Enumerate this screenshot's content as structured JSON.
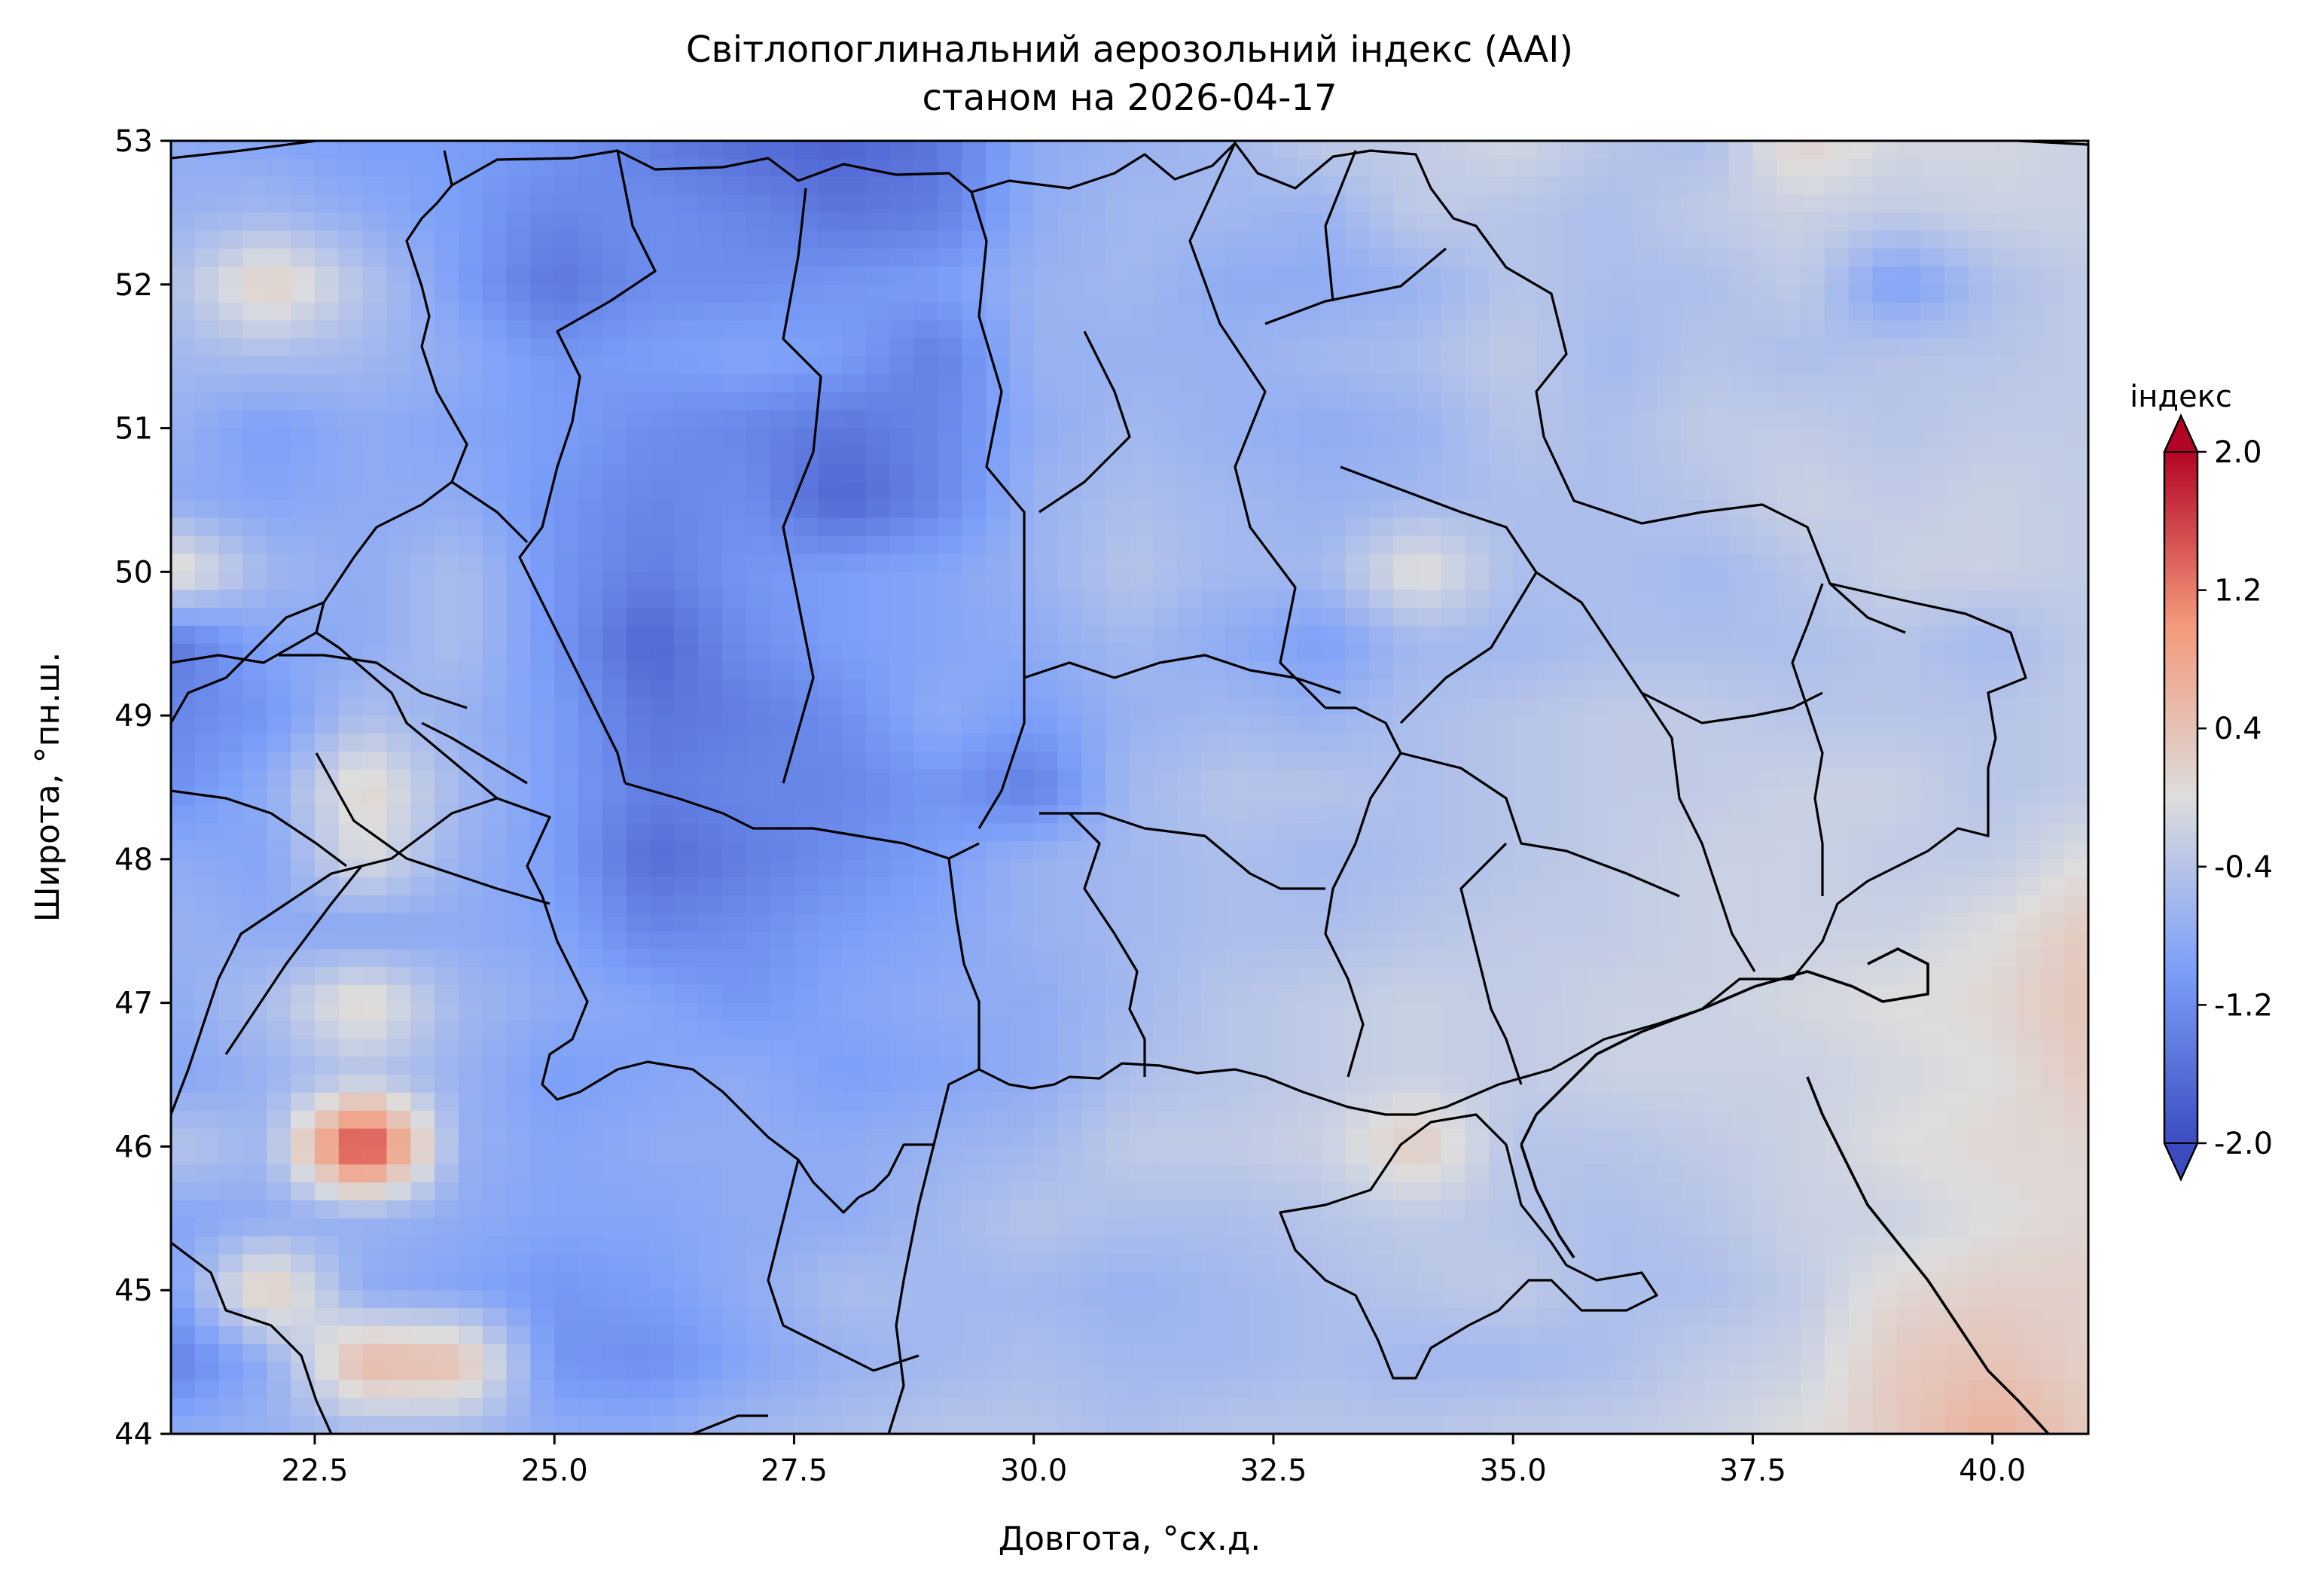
{
  "title": {
    "line1": "Світлопоглинальний аерозольний індекс (AAI)",
    "line2": "станом на 2026-04-17"
  },
  "axes": {
    "xlabel": "Довгота, °сх.д.",
    "ylabel": "Широта, °пн.ш.",
    "xlim": [
      21,
      41
    ],
    "ylim": [
      44,
      53
    ],
    "xticks": [
      22.5,
      25.0,
      27.5,
      30.0,
      32.5,
      35.0,
      37.5,
      40.0
    ],
    "yticks": [
      44,
      45,
      46,
      47,
      48,
      49,
      50,
      51,
      52,
      53
    ],
    "xtick_labels": [
      "22.5",
      "25.0",
      "27.5",
      "30.0",
      "32.5",
      "35.0",
      "37.5",
      "40.0"
    ],
    "ytick_labels": [
      "44",
      "45",
      "46",
      "47",
      "48",
      "49",
      "50",
      "51",
      "52",
      "53"
    ]
  },
  "colorbar": {
    "label": "індекс",
    "range": [
      -2.0,
      2.0
    ],
    "ticks": [
      -2.0,
      -1.2,
      -0.4,
      0.4,
      1.2,
      2.0
    ],
    "tick_labels": [
      "-2.0",
      "-1.2",
      "-0.4",
      "0.4",
      "1.2",
      "2.0"
    ],
    "colormap": "coolwarm",
    "low_color": "#3b4cc0",
    "mid_color": "#dddddd",
    "high_color": "#b40426"
  },
  "chart_data": {
    "type": "heatmap",
    "variable": "AAI",
    "date": "2026-04-17",
    "grid_lon": [
      21,
      22,
      23,
      24,
      25,
      26,
      27,
      28,
      29,
      30,
      31,
      32,
      33,
      34,
      35,
      36,
      37,
      38,
      39,
      40,
      41
    ],
    "grid_lat": [
      53,
      52.5,
      52,
      51.5,
      51,
      50.5,
      50,
      49.5,
      49,
      48.5,
      48,
      47.5,
      47,
      46.5,
      46,
      45.5,
      45,
      44.5,
      44
    ],
    "values": [
      [
        -0.8,
        -0.9,
        -1.0,
        -1.0,
        -1.1,
        -1.4,
        -1.6,
        -1.7,
        -1.5,
        -0.8,
        -0.7,
        -0.6,
        -0.3,
        -0.3,
        -0.1,
        -0.4,
        -0.5,
        0.2,
        -0.1,
        -0.1,
        -0.2
      ],
      [
        -0.7,
        -0.6,
        -0.8,
        -1.0,
        -1.3,
        -1.2,
        -1.3,
        -1.5,
        -1.4,
        -0.8,
        -0.6,
        -0.6,
        -0.7,
        -0.3,
        -0.4,
        -0.5,
        -0.3,
        -0.2,
        -0.3,
        -0.2,
        -0.2
      ],
      [
        -0.5,
        0.3,
        -0.4,
        -1.0,
        -1.5,
        -1.2,
        -1.2,
        -1.1,
        -1.0,
        -0.7,
        -0.6,
        -0.8,
        -0.8,
        -0.7,
        -0.4,
        -0.5,
        -0.5,
        -0.3,
        -1.0,
        -0.5,
        -0.3
      ],
      [
        -0.6,
        -0.5,
        -0.6,
        -0.8,
        -1.1,
        -1.0,
        -0.9,
        -1.0,
        -1.4,
        -0.7,
        -0.7,
        -0.7,
        -0.6,
        -0.5,
        -0.3,
        -0.6,
        -0.4,
        -0.5,
        -0.4,
        -0.4,
        -0.3
      ],
      [
        -0.7,
        -1.0,
        -0.8,
        -0.9,
        -1.0,
        -1.2,
        -1.3,
        -1.5,
        -1.3,
        -0.8,
        -0.6,
        -0.7,
        -0.8,
        -0.7,
        -0.4,
        -0.5,
        -0.3,
        -0.3,
        -0.4,
        -0.3,
        -0.3
      ],
      [
        -0.8,
        -0.9,
        -0.8,
        -0.8,
        -1.1,
        -1.3,
        -1.2,
        -1.7,
        -1.3,
        -0.7,
        -0.5,
        -0.6,
        -0.7,
        -0.6,
        -0.5,
        -0.5,
        -0.4,
        -0.2,
        -0.3,
        -0.2,
        -0.3
      ],
      [
        0.2,
        -0.6,
        -0.8,
        -0.5,
        -1.1,
        -1.4,
        -1.1,
        -1.0,
        -0.9,
        -0.7,
        -0.4,
        -0.6,
        -0.6,
        0.1,
        -0.5,
        -0.5,
        -0.6,
        -0.4,
        -0.2,
        -0.2,
        -0.3
      ],
      [
        -1.5,
        -0.9,
        -0.8,
        -0.5,
        -1.1,
        -1.7,
        -1.2,
        -1.0,
        -0.9,
        -0.8,
        -0.6,
        -0.8,
        -1.0,
        -0.6,
        -0.6,
        -0.5,
        -0.5,
        -0.5,
        -0.4,
        -0.6,
        -0.3
      ],
      [
        -1.3,
        -1.1,
        -0.5,
        -0.7,
        -1.0,
        -1.5,
        -1.4,
        -1.2,
        -0.8,
        -1.0,
        -0.7,
        -0.6,
        -0.7,
        -0.5,
        -0.4,
        -0.3,
        -0.3,
        -0.4,
        -0.4,
        -0.4,
        -0.3
      ],
      [
        -1.2,
        -0.8,
        0.2,
        -0.6,
        -1.0,
        -1.4,
        -1.3,
        -1.3,
        -1.1,
        -1.4,
        -0.6,
        -0.4,
        -0.4,
        -0.5,
        -0.4,
        -0.3,
        -0.3,
        -0.2,
        -0.2,
        -0.4,
        -0.3
      ],
      [
        -0.8,
        -0.9,
        0.0,
        -0.7,
        -1.0,
        -1.6,
        -1.4,
        -1.2,
        -1.0,
        -0.7,
        -0.6,
        -0.5,
        -0.6,
        -0.5,
        -0.4,
        -0.3,
        -0.2,
        -0.2,
        -0.3,
        -0.3,
        0.0
      ],
      [
        -0.7,
        -0.8,
        -0.9,
        -0.8,
        -0.9,
        -1.3,
        -1.2,
        -1.0,
        -0.9,
        -0.7,
        -0.6,
        -0.5,
        -0.5,
        -0.4,
        -0.3,
        -0.3,
        -0.2,
        -0.2,
        -0.2,
        0.0,
        0.3
      ],
      [
        -0.8,
        -0.5,
        0.2,
        -0.6,
        -0.8,
        -0.9,
        -1.1,
        -0.9,
        -0.8,
        -0.8,
        -0.6,
        -0.4,
        -0.3,
        -0.2,
        -0.3,
        -0.2,
        -0.2,
        -0.1,
        0.0,
        0.1,
        0.4
      ],
      [
        -0.9,
        -0.7,
        -0.4,
        -0.7,
        -1.0,
        -0.9,
        -0.8,
        -1.0,
        -0.9,
        -0.8,
        -0.5,
        -0.4,
        -0.3,
        -0.2,
        -0.3,
        -0.2,
        -0.2,
        -0.2,
        -0.1,
        0.0,
        0.3
      ],
      [
        -0.4,
        -0.6,
        1.9,
        -0.7,
        -0.9,
        -0.8,
        -0.8,
        -0.8,
        -0.7,
        -0.6,
        -0.3,
        -0.3,
        -0.2,
        0.3,
        -0.4,
        -0.4,
        -0.3,
        -0.2,
        0.0,
        0.1,
        0.1
      ],
      [
        -0.9,
        -0.8,
        -0.7,
        -0.8,
        -0.9,
        -0.9,
        -0.8,
        -0.8,
        -0.6,
        -0.4,
        -0.5,
        -0.5,
        -0.4,
        -0.3,
        -0.4,
        -0.5,
        -0.4,
        -0.2,
        -0.2,
        0.0,
        0.1
      ],
      [
        -1.0,
        0.4,
        -0.8,
        -0.9,
        -1.1,
        -1.0,
        -0.8,
        -0.5,
        -0.6,
        -0.6,
        -0.7,
        -0.6,
        -0.5,
        -0.4,
        -0.3,
        -0.5,
        -0.5,
        -0.3,
        0.1,
        0.2,
        0.2
      ],
      [
        -1.4,
        -0.8,
        0.6,
        0.5,
        -1.1,
        -1.2,
        -0.9,
        -0.7,
        -0.6,
        -0.5,
        -0.6,
        -0.6,
        -0.5,
        -0.6,
        -0.6,
        -0.5,
        -0.3,
        -0.2,
        0.3,
        0.4,
        0.2
      ],
      [
        -0.8,
        -0.7,
        -0.6,
        -0.6,
        -0.8,
        -0.8,
        -0.6,
        -0.5,
        -0.4,
        -0.4,
        -0.5,
        -0.4,
        -0.4,
        -0.4,
        -0.3,
        -0.3,
        -0.2,
        0.0,
        0.3,
        0.7,
        0.3
      ]
    ]
  }
}
